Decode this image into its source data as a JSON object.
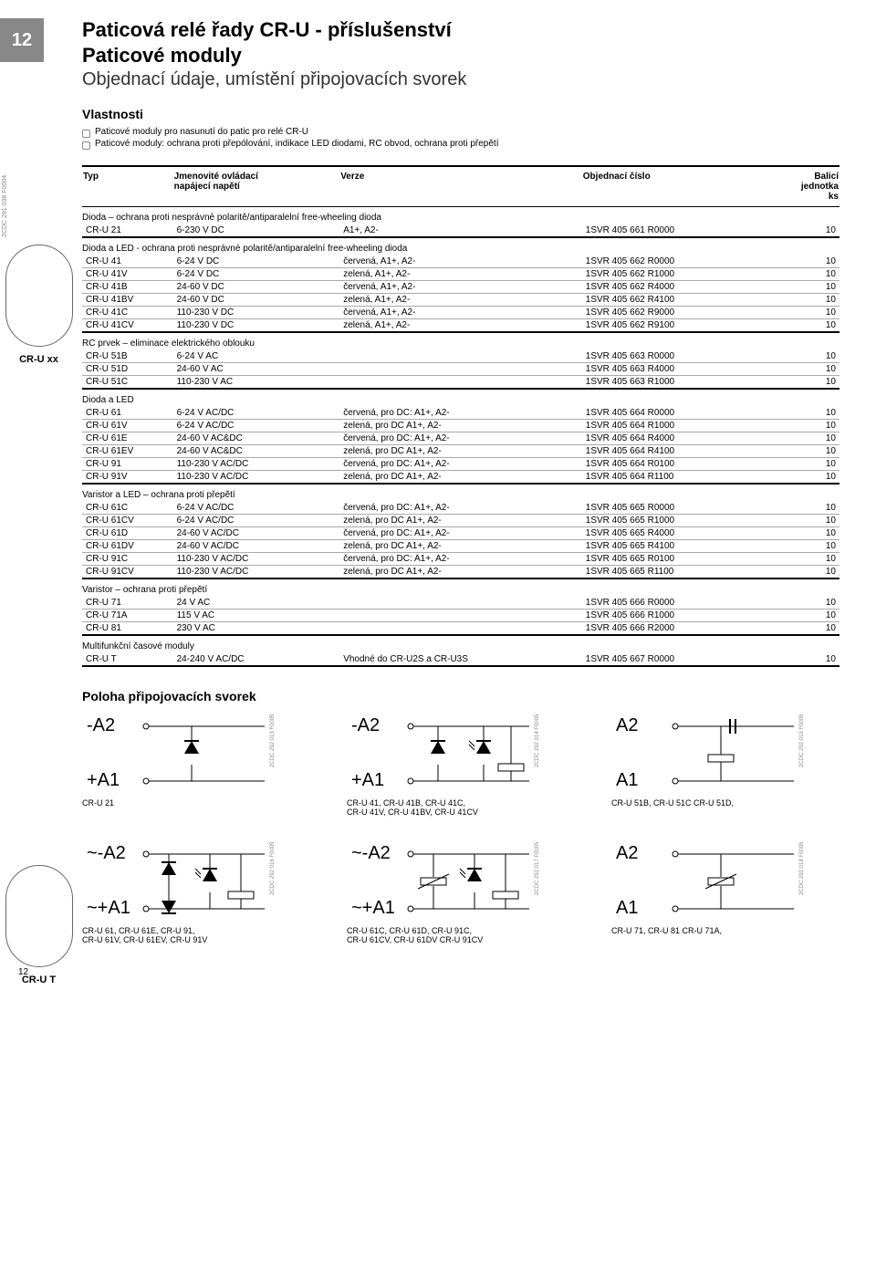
{
  "page_number_tab": "12",
  "page_number_bottom": "12",
  "title1": "Paticová relé  řady CR-U - příslušenství",
  "title2": "Paticové moduly",
  "subtitle": "Objednací údaje, umístění připojovacích svorek",
  "properties_heading": "Vlastnosti",
  "properties": [
    "Paticové moduly pro nasunutí do patic pro relé CR-U",
    "Paticové moduly: ochrana proti přepólování, indikace LED diodami, RC obvod, ochrana proti přepětí"
  ],
  "header": {
    "c1": "Typ",
    "c2a": "Jmenovité ovládací",
    "c2b": "napájecí napětí",
    "c3": "Verze",
    "c4": "Objednací číslo",
    "c5a": "Balicí",
    "c5b": "jednotka",
    "c5c": "ks"
  },
  "side": {
    "img1": "CR-U xx",
    "img2": "CR-U T",
    "code": "2CDC 291 038 F0004"
  },
  "sections": [
    {
      "title": "Dioda – ochrana proti nesprávné polaritě/antiparalelní free-wheeling dioda",
      "rows": [
        [
          "CR-U 21",
          "6-230 V DC",
          "A1+, A2-",
          "1SVR 405 661 R0000",
          "10"
        ]
      ]
    },
    {
      "title": "Dioda a LED -  ochrana proti nesprávné polaritě/antiparalelní free-wheeling dioda",
      "rows": [
        [
          "CR-U 41",
          "6-24 V DC",
          "červená, A1+, A2-",
          "1SVR 405 662 R0000",
          "10"
        ],
        [
          "CR-U 41V",
          "6-24 V DC",
          "zelená, A1+, A2-",
          "1SVR 405 662 R1000",
          "10"
        ],
        [
          "CR-U 41B",
          "24-60 V DC",
          "červená, A1+, A2-",
          "1SVR 405 662 R4000",
          "10"
        ],
        [
          "CR-U 41BV",
          "24-60 V DC",
          "zelená, A1+, A2-",
          "1SVR 405 662 R4100",
          "10"
        ],
        [
          "CR-U 41C",
          "110-230 V DC",
          "červená, A1+, A2-",
          "1SVR 405 662 R9000",
          "10"
        ],
        [
          "CR-U 41CV",
          "110-230 V DC",
          "zelená, A1+, A2-",
          "1SVR 405 662 R9100",
          "10"
        ]
      ]
    },
    {
      "title": "RC prvek – eliminace elektrického oblouku",
      "rows": [
        [
          "CR-U 51B",
          "6-24 V AC",
          "",
          "1SVR 405 663 R0000",
          "10"
        ],
        [
          "CR-U 51D",
          "24-60 V AC",
          "",
          "1SVR 405 663 R4000",
          "10"
        ],
        [
          "CR-U 51C",
          "110-230 V AC",
          "",
          "1SVR 405 663 R1000",
          "10"
        ]
      ]
    },
    {
      "title": "Dioda a LED",
      "rows": [
        [
          "CR-U 61",
          "6-24 V AC/DC",
          "červená, pro DC: A1+, A2-",
          "1SVR 405 664 R0000",
          "10"
        ],
        [
          "CR-U 61V",
          "6-24 V AC/DC",
          "zelená, pro DC A1+, A2-",
          "1SVR 405 664 R1000",
          "10"
        ],
        [
          "CR-U 61E",
          "24-60 V AC&DC",
          "červená, pro DC: A1+, A2-",
          "1SVR 405 664 R4000",
          "10"
        ],
        [
          "CR-U 61EV",
          "24-60 V AC&DC",
          "zelená, pro DC A1+, A2-",
          "1SVR 405 664 R4100",
          "10"
        ],
        [
          "CR-U 91",
          "110-230 V AC/DC",
          "červená, pro DC: A1+, A2-",
          "1SVR 405 664 R0100",
          "10"
        ],
        [
          "CR-U 91V",
          "110-230 V AC/DC",
          "zelená, pro DC A1+, A2-",
          "1SVR 405 664 R1100",
          "10"
        ]
      ]
    },
    {
      "title": "Varistor a LED – ochrana proti přepětí",
      "rows": [
        [
          "CR-U 61C",
          "6-24 V AC/DC",
          "červená, pro DC: A1+, A2-",
          "1SVR 405 665 R0000",
          "10"
        ],
        [
          "CR-U 61CV",
          "6-24 V AC/DC",
          "zelená, pro DC A1+, A2-",
          "1SVR 405 665 R1000",
          "10"
        ],
        [
          "CR-U 61D",
          "24-60 V AC/DC",
          "červená, pro DC: A1+, A2-",
          "1SVR 405 665 R4000",
          "10"
        ],
        [
          "CR-U 61DV",
          "24-60 V AC/DC",
          "zelená, pro DC A1+, A2-",
          "1SVR 405 665 R4100",
          "10"
        ],
        [
          "CR-U 91C",
          "110-230 V AC/DC",
          "červená, pro DC: A1+, A2-",
          "1SVR 405 665 R0100",
          "10"
        ],
        [
          "CR-U 91CV",
          "110-230 V AC/DC",
          "zelená, pro DC A1+, A2-",
          "1SVR 405 665 R1100",
          "10"
        ]
      ]
    },
    {
      "title": "Varistor – ochrana proti přepětí",
      "rows": [
        [
          "CR-U 71",
          "24 V AC",
          "",
          "1SVR 405 666 R0000",
          "10"
        ],
        [
          "CR-U 71A",
          "115 V AC",
          "",
          "1SVR 405 666 R1000",
          "10"
        ],
        [
          "CR-U 81",
          "230 V AC",
          "",
          "1SVR 405 666 R2000",
          "10"
        ]
      ]
    },
    {
      "title": "Multifunkční časové moduly",
      "rows": [
        [
          "CR-U T",
          "24-240 V AC/DC",
          "Vhodné do CR-U2S a CR-U3S",
          "1SVR 405 667 R0000",
          "10"
        ]
      ]
    }
  ],
  "terminals_heading": "Poloha připojovacích svorek",
  "diagrams": {
    "row1": [
      {
        "top": "-A2",
        "bot": "+A1",
        "cap": "CR-U 21",
        "code": "2CDC 292 013 F0005"
      },
      {
        "top": "-A2",
        "bot": "+A1",
        "cap": "CR-U 41,    CR-U 41B,  CR-U 41C,\nCR-U 41V,  CR-U 41BV, CR-U 41CV",
        "code": "2CDC 292 014 F0005"
      },
      {
        "top": "A2",
        "bot": "A1",
        "cap": "CR-U 51B,  CR-U 51C   CR-U 51D,",
        "code": "2CDC 292 015 F0005"
      }
    ],
    "row2": [
      {
        "top": "~-A2",
        "bot": "~+A1",
        "cap": "CR-U 61,    CR-U 61E,  CR-U 91,\nCR-U 61V,  CR-U 61EV, CR-U 91V",
        "code": "2CDC 292 016 F0005"
      },
      {
        "top": "~-A2",
        "bot": "~+A1",
        "cap": "CR-U 61C,  CR-U 61D,  CR-U 91C,\nCR-U 61CV, CR-U 61DV  CR-U 91CV",
        "code": "2CDC 292 017 F0005"
      },
      {
        "top": "A2",
        "bot": "A1",
        "cap": "CR-U 71,    CR-U 81     CR-U 71A,",
        "code": "2CDC 292 018 F0005"
      }
    ]
  }
}
